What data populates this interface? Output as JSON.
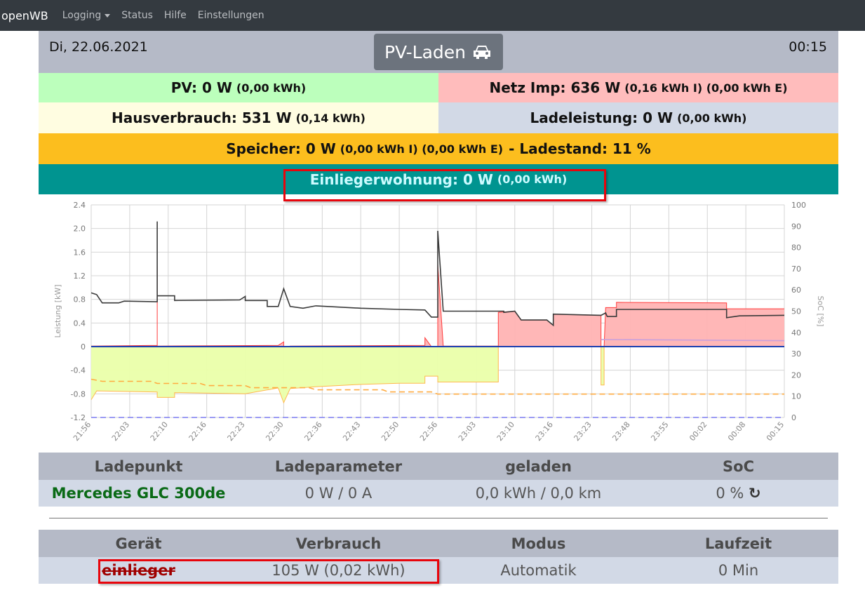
{
  "nav": {
    "brand": "openWB",
    "items": [
      "Logging",
      "Status",
      "Hilfe",
      "Einstellungen"
    ]
  },
  "header": {
    "date": "Di, 22.06.2021",
    "time": "00:15",
    "mode": "PV-Laden",
    "mode_icon": "car-icon"
  },
  "summary": {
    "pv": {
      "main": "PV: 0 W",
      "sub": "(0,00 kWh)",
      "color": "#bcffbc"
    },
    "netz": {
      "main": "Netz Imp: 636 W",
      "sub": "(0,16 kWh I) (0,00 kWh E)",
      "color": "#ffbcbc"
    },
    "haus": {
      "main": "Hausverbrauch: 531 W",
      "sub": "(0,14 kWh)",
      "color": "#fffde1"
    },
    "lade": {
      "main": "Ladeleistung: 0 W",
      "sub": "(0,00 kWh)",
      "color": "#d2d9e6"
    },
    "speicher": {
      "main": "Speicher: 0 W",
      "sub": "(0,00 kWh I) (0,00 kWh E)",
      "tail": "- Ladestand: 11 %",
      "color": "#fcbe1e"
    },
    "einlieger": {
      "main": "Einliegerwohnung: 0 W",
      "sub": "(0,00 kWh)",
      "color": "#009490"
    }
  },
  "chart_data": {
    "type": "line",
    "ylabel": "Leistung [kW]",
    "y2label": "SoC [%]",
    "ylim": [
      -1.2,
      2.4
    ],
    "y_ticks": [
      "2.4",
      "2.0",
      "1.6",
      "1.2",
      "0.8",
      "0.4",
      "0",
      "-0.4",
      "-0.8",
      "-1.2"
    ],
    "y2lim": [
      0,
      100
    ],
    "y2_ticks": [
      "100",
      "90",
      "80",
      "70",
      "60",
      "50",
      "40",
      "30",
      "20",
      "10",
      "0"
    ],
    "x_ticks": [
      "21:56",
      "22:03",
      "22:10",
      "22:16",
      "22:23",
      "22:30",
      "22:36",
      "22:43",
      "22:50",
      "22:56",
      "23:03",
      "23:10",
      "23:16",
      "23:23",
      "23:48",
      "23:55",
      "00:02",
      "00:08",
      "00:15"
    ],
    "grid": true,
    "series": [
      {
        "style": "area",
        "axis": "left",
        "color": "#ff3b3b",
        "fill": "#ffb3b3",
        "points": [
          [
            "21:56",
            0.01
          ],
          [
            "22:08",
            0.02
          ],
          [
            "22:08",
            1.36
          ],
          [
            "22:08",
            0.01
          ],
          [
            "22:29",
            0.02
          ],
          [
            "22:30",
            0.08
          ],
          [
            "22:30",
            -0.02
          ],
          [
            "22:31",
            0.01
          ],
          [
            "22:54",
            0.02
          ],
          [
            "22:54",
            0.15
          ],
          [
            "22:55",
            0.0
          ],
          [
            "22:56",
            0.0
          ],
          [
            "22:56",
            1.4
          ],
          [
            "22:57",
            0.01
          ],
          [
            "23:07",
            0.01
          ],
          [
            "23:07",
            0.58
          ],
          [
            "23:10",
            0.6
          ],
          [
            "23:11",
            0.45
          ],
          [
            "23:15",
            0.45
          ],
          [
            "23:16",
            0.36
          ],
          [
            "23:16",
            0.55
          ],
          [
            "23:29",
            0.53
          ],
          [
            "23:29",
            0
          ],
          [
            "23:31",
            0
          ],
          [
            "23:32",
            0.66
          ],
          [
            "23:39",
            0.66
          ],
          [
            "23:39",
            0.75
          ],
          [
            "00:05",
            0.74
          ],
          [
            "00:05",
            0.64
          ],
          [
            "00:15",
            0.64
          ]
        ]
      },
      {
        "style": "area",
        "axis": "left",
        "color": "#ffb84d",
        "fill": "#eaffaa",
        "points": [
          [
            "21:56",
            -0.9
          ],
          [
            "21:57",
            -0.75
          ],
          [
            "22:08",
            -0.77
          ],
          [
            "22:08",
            -0.86
          ],
          [
            "22:11",
            -0.86
          ],
          [
            "22:11",
            -0.78
          ],
          [
            "22:23",
            -0.8
          ],
          [
            "22:29",
            -0.7
          ],
          [
            "22:30",
            -0.95
          ],
          [
            "22:31",
            -0.71
          ],
          [
            "22:35",
            -0.68
          ],
          [
            "22:43",
            -0.64
          ],
          [
            "22:50",
            -0.62
          ],
          [
            "22:54",
            -0.62
          ],
          [
            "22:54",
            -0.5
          ],
          [
            "22:56",
            -0.5
          ],
          [
            "22:56",
            -0.6
          ],
          [
            "23:07",
            -0.6
          ],
          [
            "23:07",
            0
          ],
          [
            "23:29",
            0
          ],
          [
            "23:29",
            -0.65
          ],
          [
            "23:31",
            -0.65
          ],
          [
            "23:31",
            0
          ],
          [
            "00:15",
            0
          ]
        ]
      },
      {
        "style": "line",
        "axis": "left",
        "color": "#3a3a3a",
        "points": [
          [
            "21:56",
            0.91
          ],
          [
            "21:57",
            0.88
          ],
          [
            "21:58",
            0.74
          ],
          [
            "22:01",
            0.74
          ],
          [
            "22:02",
            0.77
          ],
          [
            "22:08",
            0.76
          ],
          [
            "22:08",
            2.12
          ],
          [
            "22:08",
            0.86
          ],
          [
            "22:11",
            0.86
          ],
          [
            "22:11",
            0.78
          ],
          [
            "22:22",
            0.79
          ],
          [
            "22:23",
            0.85
          ],
          [
            "22:23",
            0.78
          ],
          [
            "22:27",
            0.78
          ],
          [
            "22:27",
            0.68
          ],
          [
            "22:29",
            0.68
          ],
          [
            "22:30",
            0.98
          ],
          [
            "22:31",
            0.68
          ],
          [
            "22:33",
            0.65
          ],
          [
            "22:35",
            0.69
          ],
          [
            "22:43",
            0.65
          ],
          [
            "22:50",
            0.63
          ],
          [
            "22:54",
            0.62
          ],
          [
            "22:55",
            0.5
          ],
          [
            "22:56",
            0.5
          ],
          [
            "22:56",
            1.96
          ],
          [
            "22:57",
            0.6
          ],
          [
            "23:08",
            0.6
          ],
          [
            "23:08",
            0.58
          ],
          [
            "23:10",
            0.6
          ],
          [
            "23:11",
            0.45
          ],
          [
            "23:15",
            0.45
          ],
          [
            "23:16",
            0.36
          ],
          [
            "23:16",
            0.55
          ],
          [
            "23:29",
            0.53
          ],
          [
            "23:32",
            0.57
          ],
          [
            "23:33",
            0.51
          ],
          [
            "23:39",
            0.51
          ],
          [
            "23:39",
            0.63
          ],
          [
            "00:05",
            0.63
          ],
          [
            "00:05",
            0.49
          ],
          [
            "00:07",
            0.52
          ],
          [
            "00:15",
            0.53
          ]
        ]
      },
      {
        "style": "line",
        "axis": "left",
        "color": "#c9a0dc",
        "points": [
          [
            "23:29",
            0.12
          ],
          [
            "00:15",
            0.1
          ]
        ]
      },
      {
        "style": "line",
        "axis": "left",
        "color": "#1a3fb0",
        "points": [
          [
            "21:56",
            0
          ],
          [
            "00:15",
            0
          ]
        ]
      },
      {
        "style": "dashed",
        "axis": "right",
        "color": "#ffab40",
        "points": [
          [
            "21:56",
            18
          ],
          [
            "21:58",
            17
          ],
          [
            "22:07",
            17
          ],
          [
            "22:08",
            16
          ],
          [
            "22:15",
            16
          ],
          [
            "22:16",
            15
          ],
          [
            "22:23",
            15
          ],
          [
            "22:24",
            14
          ],
          [
            "22:34",
            14
          ],
          [
            "22:35",
            13
          ],
          [
            "22:47",
            13
          ],
          [
            "22:48",
            12
          ],
          [
            "22:55",
            12
          ],
          [
            "22:56",
            11
          ],
          [
            "00:15",
            11
          ]
        ]
      },
      {
        "style": "dashed",
        "axis": "right",
        "color": "#7b7bf0",
        "points": [
          [
            "21:56",
            0
          ],
          [
            "00:15",
            0
          ]
        ]
      }
    ]
  },
  "lp_table": {
    "headers": [
      "Ladepunkt",
      "Ladeparameter",
      "geladen",
      "SoC"
    ],
    "row": {
      "name": "Mercedes GLC 300de",
      "param": "0 W / 0 A",
      "geladen": "0,0 kWh / 0,0 km",
      "soc": "0 %",
      "soc_icon": "refresh-icon"
    }
  },
  "device_table": {
    "headers": [
      "Gerät",
      "Verbrauch",
      "Modus",
      "Laufzeit"
    ],
    "row": {
      "name": "einlieger",
      "verbrauch": "105 W (0,02 kWh)",
      "modus": "Automatik",
      "laufzeit": "0 Min"
    }
  }
}
